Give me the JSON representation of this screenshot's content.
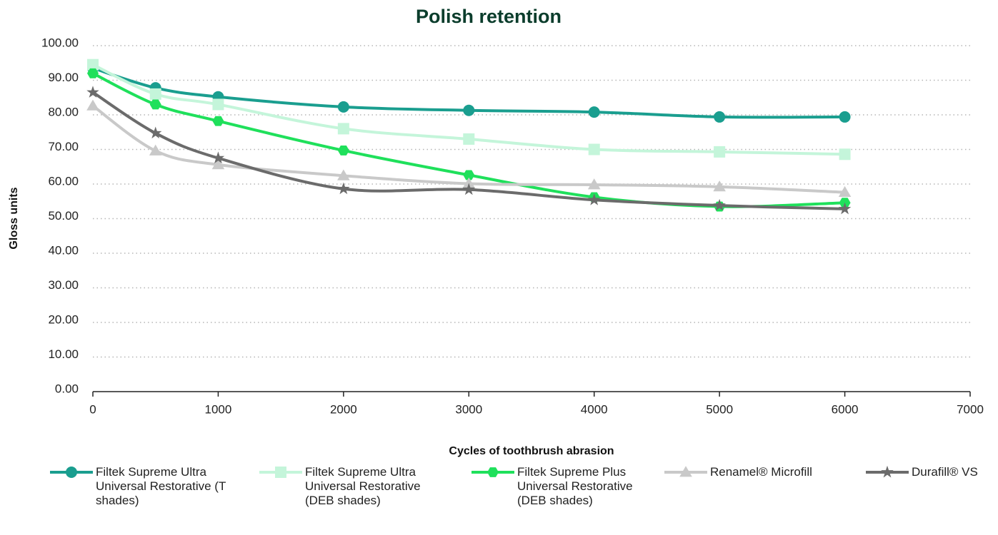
{
  "chart_data": {
    "type": "line",
    "title": "Polish retention",
    "xlabel": "Cycles of toothbrush abrasion",
    "ylabel": "Gloss units",
    "x": [
      0,
      500,
      1000,
      2000,
      3000,
      4000,
      5000,
      6000
    ],
    "xlim": [
      0,
      7000
    ],
    "xticks": [
      0,
      1000,
      2000,
      3000,
      4000,
      5000,
      6000,
      7000
    ],
    "ylim": [
      0,
      100
    ],
    "yticks": [
      {
        "value": 0,
        "label": "0.00"
      },
      {
        "value": 10,
        "label": "10.00"
      },
      {
        "value": 20,
        "label": "20.00"
      },
      {
        "value": 30,
        "label": "30.00"
      },
      {
        "value": 40,
        "label": "40.00"
      },
      {
        "value": 50,
        "label": "50.00"
      },
      {
        "value": 60,
        "label": "60.00"
      },
      {
        "value": 70,
        "label": "70.00"
      },
      {
        "value": 80,
        "label": "80.00"
      },
      {
        "value": 90,
        "label": "90.00"
      },
      {
        "value": 100,
        "label": "100.00"
      }
    ],
    "grid": true,
    "legend": "bottom",
    "series": [
      {
        "name": "Filtek Supreme Ultra Universal Restorative (T shades)",
        "color": "#1a9e8f",
        "marker": "circle",
        "values": [
          93.5,
          87.8,
          85.2,
          82.3,
          81.3,
          80.8,
          79.4,
          79.4
        ]
      },
      {
        "name": "Filtek Supreme Ultra Universal Restorative (DEB shades)",
        "color": "#c4f5da",
        "marker": "square",
        "values": [
          94.5,
          86.0,
          83.0,
          76.0,
          73.0,
          70.0,
          69.3,
          68.6
        ]
      },
      {
        "name": "Filtek Supreme Plus Universal Restorative (DEB shades)",
        "color": "#1fe05b",
        "marker": "hexagon",
        "values": [
          92.0,
          83.0,
          78.2,
          69.7,
          62.6,
          56.2,
          53.5,
          54.6
        ]
      },
      {
        "name": "Renamel® Microfill",
        "color": "#c9c9c9",
        "marker": "triangle",
        "values": [
          82.6,
          69.6,
          65.6,
          62.4,
          60.1,
          59.8,
          59.2,
          57.6
        ]
      },
      {
        "name": "Durafill® VS",
        "color": "#6b6b6b",
        "marker": "star",
        "values": [
          86.5,
          74.7,
          67.5,
          58.6,
          58.4,
          55.4,
          53.8,
          52.8
        ]
      }
    ]
  }
}
